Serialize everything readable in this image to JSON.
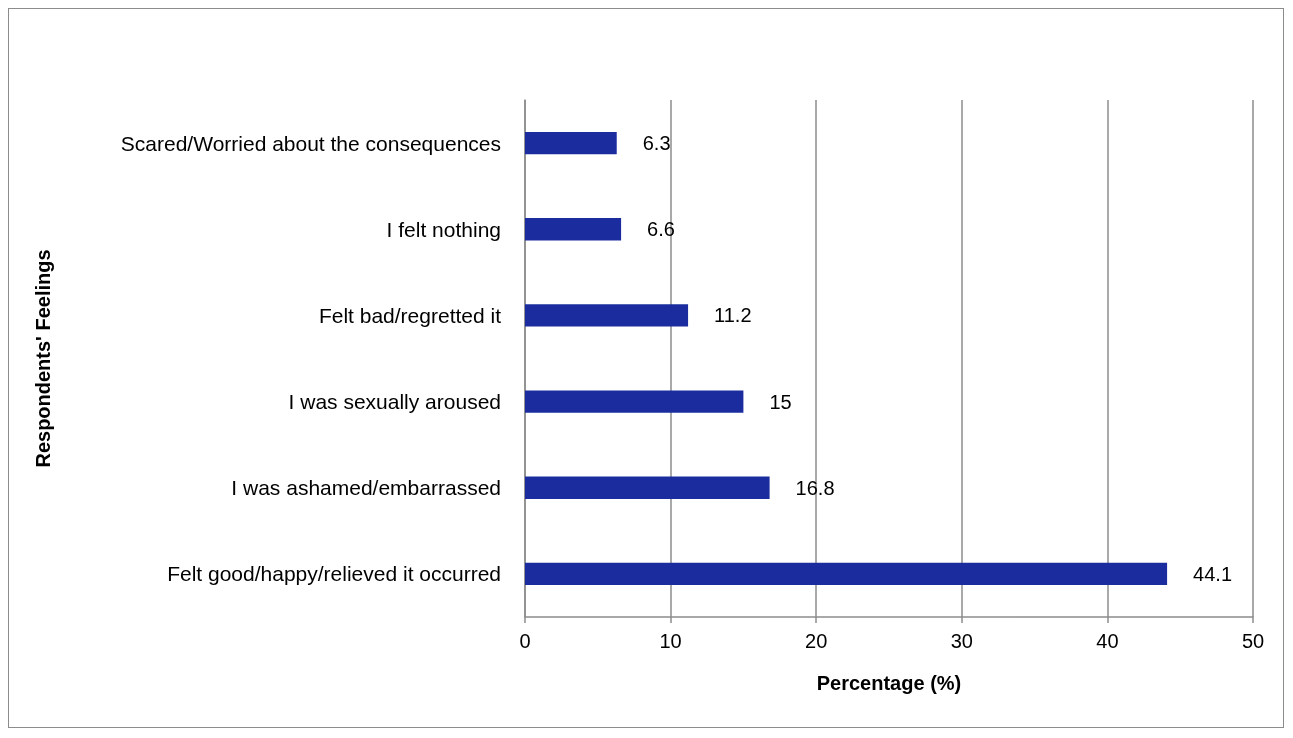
{
  "chart_data": {
    "type": "bar",
    "orientation": "horizontal",
    "xlabel": "Percentage (%)",
    "ylabel": "Respondents' Feelings",
    "categories": [
      "Scared/Worried about the consequences",
      "I felt nothing",
      "Felt bad/regretted it",
      "I was sexually aroused",
      "I was ashamed/embarrassed",
      "Felt good/happy/relieved it occurred"
    ],
    "values": [
      6.3,
      6.6,
      11.2,
      15,
      16.8,
      44.1
    ],
    "color": "#1a2c9e",
    "xlim": [
      0,
      50
    ],
    "xticks": [
      0,
      10,
      20,
      30,
      40,
      50
    ],
    "grid": "x",
    "data_labels": true
  }
}
